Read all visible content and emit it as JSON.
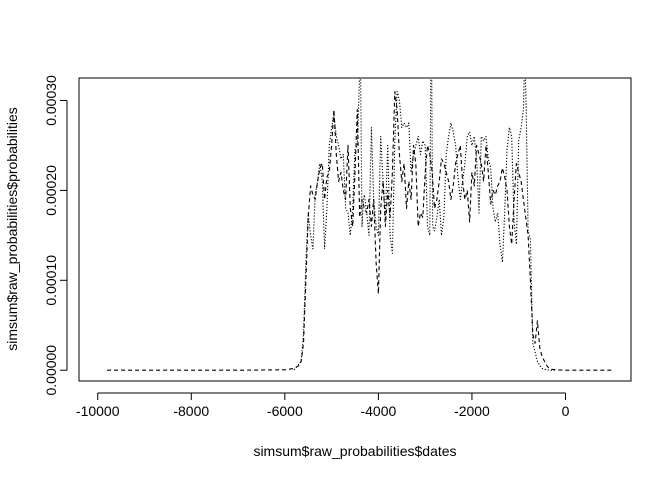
{
  "chart_data": {
    "type": "line",
    "title": "",
    "xlabel": "simsum$raw_probabilities$dates",
    "ylabel": "simsum$raw_probabilities$probabilities",
    "xlim": [
      -10400,
      1400
    ],
    "ylim": [
      -1.2e-05,
      0.000325
    ],
    "x_ticks": [
      -10000,
      -8000,
      -6000,
      -4000,
      -2000,
      0
    ],
    "x_tick_labels": [
      "-10000",
      "-8000",
      "-6000",
      "-4000",
      "-2000",
      "0"
    ],
    "y_ticks": [
      0.0,
      0.0001,
      0.0002,
      0.0003
    ],
    "y_tick_labels": [
      "0.00000",
      "0.00010",
      "0.00020",
      "0.00030"
    ],
    "grid": false,
    "legend": "none",
    "series": [
      {
        "line_style": "dashed",
        "color": "#000000",
        "x": [
          -9800,
          -7000,
          -6000,
          -5800,
          -5700,
          -5650,
          -5600,
          -5550,
          -5500,
          -5450,
          -5400,
          -5350,
          -5300,
          -5250,
          -5200,
          -5150,
          -5100,
          -5050,
          -5000,
          -4950,
          -4900,
          -4850,
          -4800,
          -4750,
          -4700,
          -4650,
          -4600,
          -4550,
          -4500,
          -4450,
          -4400,
          -4350,
          -4300,
          -4250,
          -4200,
          -4150,
          -4100,
          -4050,
          -4000,
          -3950,
          -3900,
          -3850,
          -3800,
          -3750,
          -3700,
          -3650,
          -3600,
          -3550,
          -3500,
          -3450,
          -3400,
          -3350,
          -3300,
          -3250,
          -3200,
          -3150,
          -3100,
          -3050,
          -3000,
          -2950,
          -2900,
          -2850,
          -2800,
          -2750,
          -2700,
          -2650,
          -2600,
          -2550,
          -2500,
          -2450,
          -2400,
          -2350,
          -2300,
          -2250,
          -2200,
          -2150,
          -2100,
          -2050,
          -2000,
          -1950,
          -1900,
          -1850,
          -1800,
          -1750,
          -1700,
          -1650,
          -1600,
          -1550,
          -1500,
          -1450,
          -1400,
          -1350,
          -1300,
          -1250,
          -1200,
          -1150,
          -1100,
          -1050,
          -1000,
          -950,
          -900,
          -850,
          -800,
          -750,
          -700,
          -650,
          -600,
          -550,
          -500,
          -450,
          -400,
          -350,
          -300,
          -200,
          0,
          500,
          1000
        ],
        "y": [
          0.0,
          0.0,
          5e-07,
          2e-06,
          5e-06,
          1e-05,
          3e-05,
          0.0001,
          0.00017,
          0.000205,
          0.000195,
          0.00019,
          0.00021,
          0.000225,
          0.00023,
          0.00019,
          0.000215,
          0.00022,
          0.00025,
          0.00029,
          0.00024,
          0.00021,
          0.00022,
          0.0002,
          0.00019,
          0.00025,
          0.00018,
          0.00016,
          0.00022,
          0.00029,
          0.00017,
          0.00019,
          0.00018,
          0.000175,
          0.00019,
          0.00016,
          0.00019,
          0.00012,
          8.5e-05,
          0.00018,
          0.00021,
          0.00016,
          0.0002,
          0.00017,
          0.00022,
          0.00031,
          0.00029,
          0.00024,
          0.00021,
          0.00023,
          0.00018,
          0.00021,
          0.00019,
          0.00025,
          0.00023,
          0.00016,
          0.000175,
          0.00017,
          0.00022,
          0.00025,
          0.00024,
          0.00022,
          0.00018,
          0.00019,
          0.00021,
          0.000235,
          0.00023,
          0.00022,
          0.00021,
          0.00019,
          0.000205,
          0.00023,
          0.00024,
          0.00025,
          0.00021,
          0.00019,
          0.0002,
          0.000165,
          0.00022,
          0.000205,
          0.00025,
          0.00024,
          0.00023,
          0.00021,
          0.00025,
          0.00022,
          0.000185,
          0.0002,
          0.000195,
          0.000205,
          0.00021,
          0.000225,
          0.000215,
          0.0002,
          0.00016,
          0.00014,
          0.00019,
          0.00023,
          0.00022,
          0.00021,
          0.00019,
          0.00017,
          0.00015,
          0.0001,
          4e-05,
          3e-05,
          5.5e-05,
          2.5e-05,
          1.5e-05,
          1e-05,
          5e-06,
          2e-06,
          1e-06,
          5e-07,
          0.0,
          0.0,
          0.0
        ]
      },
      {
        "line_style": "dotted",
        "color": "#000000",
        "x": [
          -5800,
          -5650,
          -5600,
          -5550,
          -5500,
          -5450,
          -5400,
          -5350,
          -5300,
          -5250,
          -5200,
          -5150,
          -5100,
          -5050,
          -5000,
          -4950,
          -4900,
          -4850,
          -4800,
          -4750,
          -4700,
          -4650,
          -4600,
          -4550,
          -4500,
          -4450,
          -4400,
          -4380,
          -4350,
          -4320,
          -4300,
          -4250,
          -4200,
          -4150,
          -4100,
          -4050,
          -4000,
          -3950,
          -3900,
          -3850,
          -3800,
          -3750,
          -3700,
          -3650,
          -3600,
          -3550,
          -3500,
          -3450,
          -3400,
          -3350,
          -3300,
          -3250,
          -3200,
          -3150,
          -3100,
          -3050,
          -3000,
          -2950,
          -2900,
          -2880,
          -2860,
          -2840,
          -2800,
          -2750,
          -2700,
          -2650,
          -2600,
          -2550,
          -2500,
          -2450,
          -2400,
          -2350,
          -2300,
          -2250,
          -2200,
          -2150,
          -2100,
          -2050,
          -2000,
          -1950,
          -1900,
          -1850,
          -1800,
          -1750,
          -1700,
          -1650,
          -1600,
          -1550,
          -1500,
          -1450,
          -1400,
          -1350,
          -1300,
          -1250,
          -1200,
          -1150,
          -1100,
          -1050,
          -1000,
          -950,
          -900,
          -880,
          -860,
          -840,
          -800,
          -750,
          -700,
          -650,
          -600,
          -550,
          -500,
          -450,
          -400,
          -300,
          -200
        ],
        "y": [
          5e-07,
          1e-05,
          4e-05,
          0.00012,
          0.000175,
          0.00015,
          0.000135,
          0.000195,
          0.00021,
          0.00023,
          0.00021,
          0.000135,
          0.00018,
          0.00025,
          0.00027,
          0.000285,
          0.00026,
          0.00025,
          0.000235,
          0.00024,
          0.00018,
          0.000175,
          0.00015,
          0.00018,
          0.000245,
          0.00025,
          0.00033,
          0.00033,
          0.00016,
          0.00019,
          0.000195,
          0.000175,
          0.00015,
          0.00027,
          0.00019,
          0.00016,
          0.00015,
          0.00026,
          0.00021,
          0.00017,
          0.00025,
          0.00015,
          0.00013,
          0.000255,
          0.00031,
          0.0003,
          0.00027,
          0.000275,
          0.00027,
          0.000275,
          0.00022,
          0.00024,
          0.00025,
          0.00026,
          0.00024,
          0.000255,
          0.00025,
          0.00016,
          0.00015,
          0.00033,
          0.00033,
          0.00016,
          0.000155,
          0.00017,
          0.00019,
          0.00015,
          0.00017,
          0.00024,
          0.00026,
          0.000275,
          0.000265,
          0.00025,
          0.000215,
          0.00019,
          0.00021,
          0.00023,
          0.00026,
          0.000265,
          0.00025,
          0.00026,
          0.000235,
          0.000175,
          0.00026,
          0.000255,
          0.00026,
          0.000235,
          0.000225,
          0.00018,
          0.000165,
          0.000175,
          0.00014,
          0.00012,
          0.000175,
          0.000245,
          0.00027,
          0.00026,
          0.000165,
          0.00014,
          0.000255,
          0.00027,
          0.00029,
          0.00033,
          0.00033,
          0.00029,
          0.000155,
          0.000145,
          3e-05,
          2e-05,
          1e-05,
          5e-06,
          2e-06,
          1e-06,
          5e-07,
          0.0,
          0.0
        ]
      }
    ]
  }
}
